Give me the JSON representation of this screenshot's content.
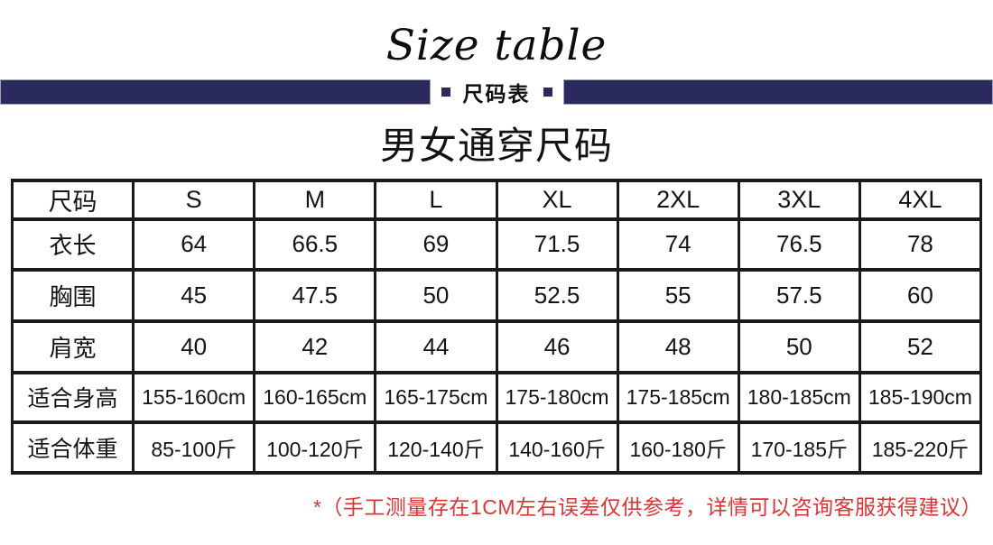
{
  "header": {
    "english_title": "Size table",
    "banner_label": "尺码表"
  },
  "main": {
    "table_title": "男女通穿尺码",
    "note": "*（手工测量存在1CM左右误差仅供参考，详情可以咨询客服获得建议）"
  },
  "size_table": {
    "columns": [
      "尺码",
      "S",
      "M",
      "L",
      "XL",
      "2XL",
      "3XL",
      "4XL"
    ],
    "rows": [
      {
        "label": "衣长",
        "small": false,
        "values": [
          "64",
          "66.5",
          "69",
          "71.5",
          "74",
          "76.5",
          "78"
        ]
      },
      {
        "label": "胸围",
        "small": false,
        "values": [
          "45",
          "47.5",
          "50",
          "52.5",
          "55",
          "57.5",
          "60"
        ]
      },
      {
        "label": "肩宽",
        "small": false,
        "values": [
          "40",
          "42",
          "44",
          "46",
          "48",
          "50",
          "52"
        ]
      },
      {
        "label": "适合身高",
        "small": true,
        "values": [
          "155-160cm",
          "160-165cm",
          "165-175cm",
          "175-180cm",
          "175-185cm",
          "180-185cm",
          "185-190cm"
        ]
      },
      {
        "label": "适合体重",
        "small": true,
        "values": [
          "85-100斤",
          "100-120斤",
          "120-140斤",
          "140-160斤",
          "160-180斤",
          "170-185斤",
          "185-220斤"
        ]
      }
    ]
  },
  "chart_data": {
    "type": "table",
    "title": "男女通穿尺码",
    "columns": [
      "尺码",
      "S",
      "M",
      "L",
      "XL",
      "2XL",
      "3XL",
      "4XL"
    ],
    "rows": [
      [
        "衣长",
        "64",
        "66.5",
        "69",
        "71.5",
        "74",
        "76.5",
        "78"
      ],
      [
        "胸围",
        "45",
        "47.5",
        "50",
        "52.5",
        "55",
        "57.5",
        "60"
      ],
      [
        "肩宽",
        "40",
        "42",
        "44",
        "46",
        "48",
        "50",
        "52"
      ],
      [
        "适合身高",
        "155-160cm",
        "160-165cm",
        "165-175cm",
        "175-180cm",
        "175-185cm",
        "180-185cm",
        "185-190cm"
      ],
      [
        "适合体重",
        "85-100斤",
        "100-120斤",
        "120-140斤",
        "140-160斤",
        "160-180斤",
        "170-185斤",
        "185-220斤"
      ]
    ]
  },
  "colors": {
    "banner_navy": "#2b2a5e",
    "note_red": "#dd3434",
    "border_black": "#1a1a1a"
  }
}
